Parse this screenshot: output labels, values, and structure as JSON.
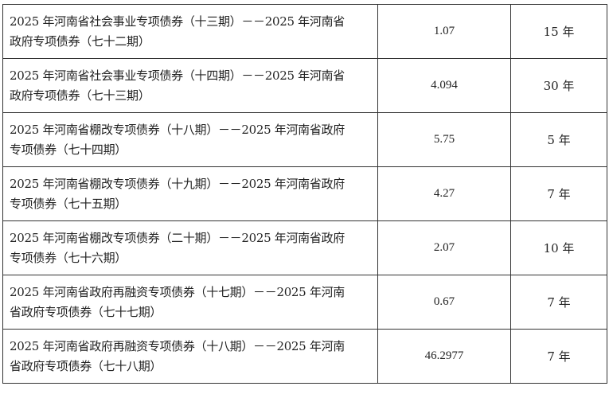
{
  "rows": [
    {
      "name_line1": "2025 年河南省社会事业专项债券（十三期）－－2025 年河南省",
      "name_line2": "政府专项债券（七十二期）",
      "amount": "1.07",
      "term": "15 年"
    },
    {
      "name_line1": "2025 年河南省社会事业专项债券（十四期）－－2025 年河南省",
      "name_line2": "政府专项债券（七十三期）",
      "amount": "4.094",
      "term": "30 年"
    },
    {
      "name_line1": "2025 年河南省棚改专项债券（十八期）－－2025 年河南省政府",
      "name_line2": "专项债券（七十四期）",
      "amount": "5.75",
      "term": "5 年"
    },
    {
      "name_line1": "2025 年河南省棚改专项债券（十九期）－－2025 年河南省政府",
      "name_line2": "专项债券（七十五期）",
      "amount": "4.27",
      "term": "7 年"
    },
    {
      "name_line1": "2025 年河南省棚改专项债券（二十期）－－2025 年河南省政府",
      "name_line2": "专项债券（七十六期）",
      "amount": "2.07",
      "term": "10 年"
    },
    {
      "name_line1": "2025 年河南省政府再融资专项债券（十七期）－－2025 年河南",
      "name_line2": "省政府专项债券（七十七期）",
      "amount": "0.67",
      "term": "7 年"
    },
    {
      "name_line1": "2025 年河南省政府再融资专项债券（十八期）－－2025 年河南",
      "name_line2": "省政府专项债券（七十八期）",
      "amount": "46.2977",
      "term": "7 年"
    }
  ]
}
